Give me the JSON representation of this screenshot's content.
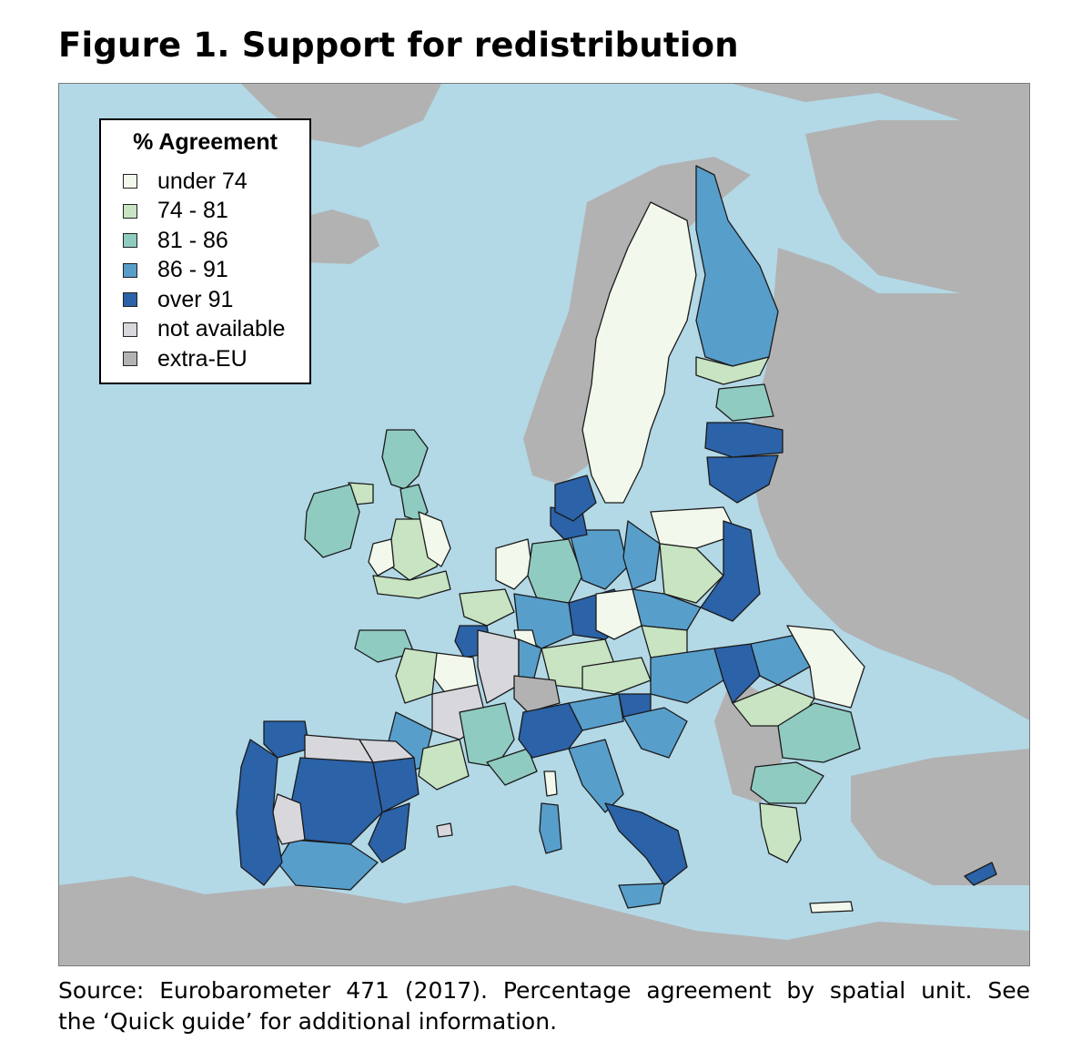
{
  "figure": {
    "title": "Figure 1. Support for redistribution"
  },
  "legend": {
    "title": "% Agreement",
    "items": [
      {
        "label": "under 74",
        "color": "#f2f8ec"
      },
      {
        "label": "74 - 81",
        "color": "#c8e4c2"
      },
      {
        "label": "81 - 86",
        "color": "#8fcbc0"
      },
      {
        "label": "86 - 91",
        "color": "#589ecb"
      },
      {
        "label": "over 91",
        "color": "#2b62a8"
      },
      {
        "label": "not available",
        "color": "#d7d7dc"
      },
      {
        "label": "extra-EU",
        "color": "#b2b2b2"
      }
    ]
  },
  "map": {
    "sea_color": "#b3d8e6",
    "extra_eu_color": "#b2b2b2",
    "border_color": "#1a1a1a"
  },
  "source": {
    "line1": "Source: Eurobarometer 471 (2017). Percentage agreement by spatial unit. See",
    "line2": "the ‘Quick guide’ for additional information."
  }
}
